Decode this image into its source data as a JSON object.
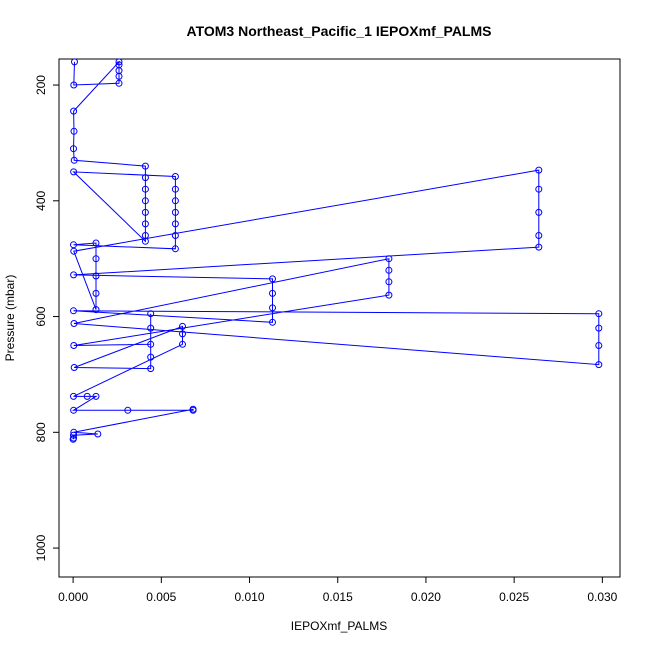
{
  "chart_data": {
    "type": "scatter",
    "title": "ATOM3 Northeast_Pacific_1 IEPOXmf_PALMS",
    "xlabel": "IEPOXmf_PALMS",
    "ylabel": "Pressure (mbar)",
    "xlim": [
      -0.0008,
      0.031
    ],
    "ylim": [
      1050,
      155
    ],
    "y_reversed": true,
    "x_ticks": [
      "0.000",
      "0.005",
      "0.010",
      "0.015",
      "0.020",
      "0.025",
      "0.030"
    ],
    "x_tick_values": [
      0,
      0.005,
      0.01,
      0.015,
      0.02,
      0.025,
      0.03
    ],
    "y_ticks": [
      "200",
      "400",
      "600",
      "800",
      "1000"
    ],
    "y_tick_values": [
      200,
      400,
      600,
      800,
      1000
    ],
    "series_color": "#0000ff",
    "marker": "open-circle",
    "connected": true,
    "points": [
      [
        8e-05,
        160
      ],
      [
        4e-05,
        200
      ],
      [
        0.0026,
        197
      ],
      [
        0.0026,
        185
      ],
      [
        0.0026,
        175
      ],
      [
        0.0026,
        165
      ],
      [
        0.0026,
        160
      ],
      [
        3e-05,
        245
      ],
      [
        5e-05,
        280
      ],
      [
        2e-05,
        310
      ],
      [
        6e-05,
        330
      ],
      [
        0.0041,
        340
      ],
      [
        0.0041,
        360
      ],
      [
        0.0041,
        380
      ],
      [
        0.0041,
        400
      ],
      [
        0.0041,
        420
      ],
      [
        0.0041,
        440
      ],
      [
        0.0041,
        460
      ],
      [
        0.0041,
        470
      ],
      [
        3e-05,
        350
      ],
      [
        0.0058,
        358
      ],
      [
        0.0058,
        380
      ],
      [
        0.0058,
        400
      ],
      [
        0.0058,
        420
      ],
      [
        0.0058,
        440
      ],
      [
        0.0058,
        460
      ],
      [
        0.0058,
        483
      ],
      [
        2e-05,
        476
      ],
      [
        0.0013,
        473
      ],
      [
        0.0013,
        500
      ],
      [
        0.0013,
        530
      ],
      [
        0.0013,
        560
      ],
      [
        0.0013,
        588
      ],
      [
        4e-05,
        487
      ],
      [
        0.0264,
        347
      ],
      [
        0.0264,
        380
      ],
      [
        0.0264,
        420
      ],
      [
        0.0264,
        460
      ],
      [
        0.0264,
        480
      ],
      [
        3e-05,
        528
      ],
      [
        0.0113,
        535
      ],
      [
        0.0113,
        560
      ],
      [
        0.0113,
        585
      ],
      [
        0.0113,
        610
      ],
      [
        2e-05,
        590
      ],
      [
        0.0298,
        595
      ],
      [
        0.0298,
        620
      ],
      [
        0.0298,
        650
      ],
      [
        0.0298,
        683
      ],
      [
        5e-05,
        612
      ],
      [
        0.0179,
        500
      ],
      [
        0.0179,
        520
      ],
      [
        0.0179,
        540
      ],
      [
        0.0179,
        563
      ],
      [
        4e-05,
        650
      ],
      [
        0.0044,
        648
      ],
      [
        0.0044,
        620
      ],
      [
        0.0044,
        595
      ],
      [
        0.0044,
        670
      ],
      [
        0.0044,
        690
      ],
      [
        6e-05,
        688
      ],
      [
        0.0062,
        617
      ],
      [
        0.0062,
        630
      ],
      [
        0.0062,
        648
      ],
      [
        2e-05,
        738
      ],
      [
        0.0008,
        738
      ],
      [
        0.0013,
        738
      ],
      [
        3e-05,
        762
      ],
      [
        0.0031,
        762
      ],
      [
        0.0068,
        762
      ],
      [
        0.0068,
        760
      ],
      [
        4e-05,
        800
      ],
      [
        0.0014,
        803
      ],
      [
        2e-05,
        805
      ],
      [
        3e-05,
        810
      ],
      [
        0.0,
        812
      ]
    ]
  }
}
